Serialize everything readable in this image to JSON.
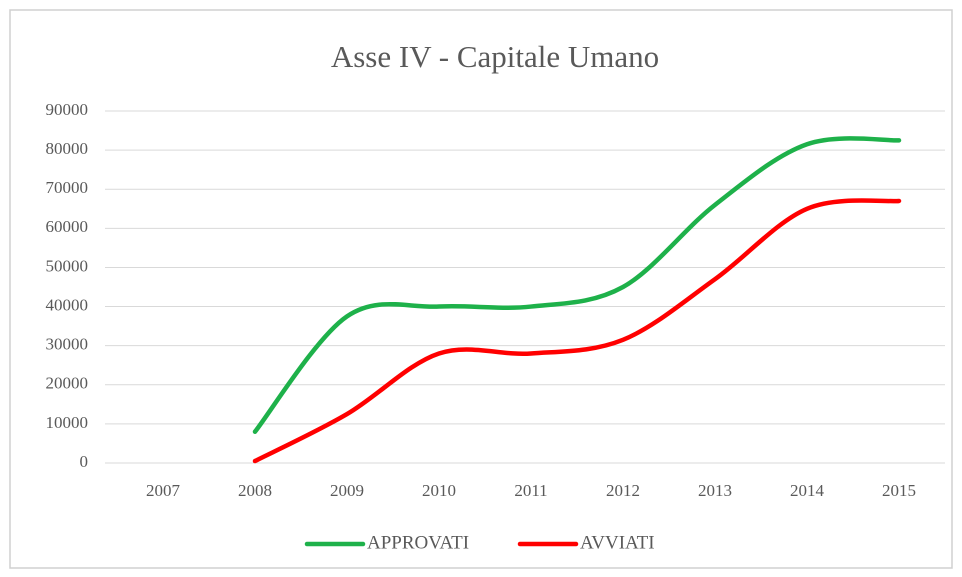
{
  "chart_data": {
    "type": "line",
    "title": "Asse IV - Capitale Umano",
    "categories": [
      "2007",
      "2008",
      "2009",
      "2010",
      "2011",
      "2012",
      "2013",
      "2014",
      "2015"
    ],
    "series": [
      {
        "name": "APPROVATI",
        "color": "#1eb14a",
        "values": [
          null,
          8000,
          37500,
          40000,
          40000,
          45000,
          66000,
          81500,
          82500
        ]
      },
      {
        "name": "AVVIATI",
        "color": "#ff0000",
        "values": [
          null,
          500,
          12500,
          28000,
          28000,
          31500,
          47000,
          65000,
          67000
        ]
      }
    ],
    "ylim": [
      0,
      90000
    ],
    "yticks": [
      0,
      10000,
      20000,
      30000,
      40000,
      50000,
      60000,
      70000,
      80000,
      90000
    ],
    "grid": true,
    "smooth": true,
    "legend": "bottom"
  }
}
